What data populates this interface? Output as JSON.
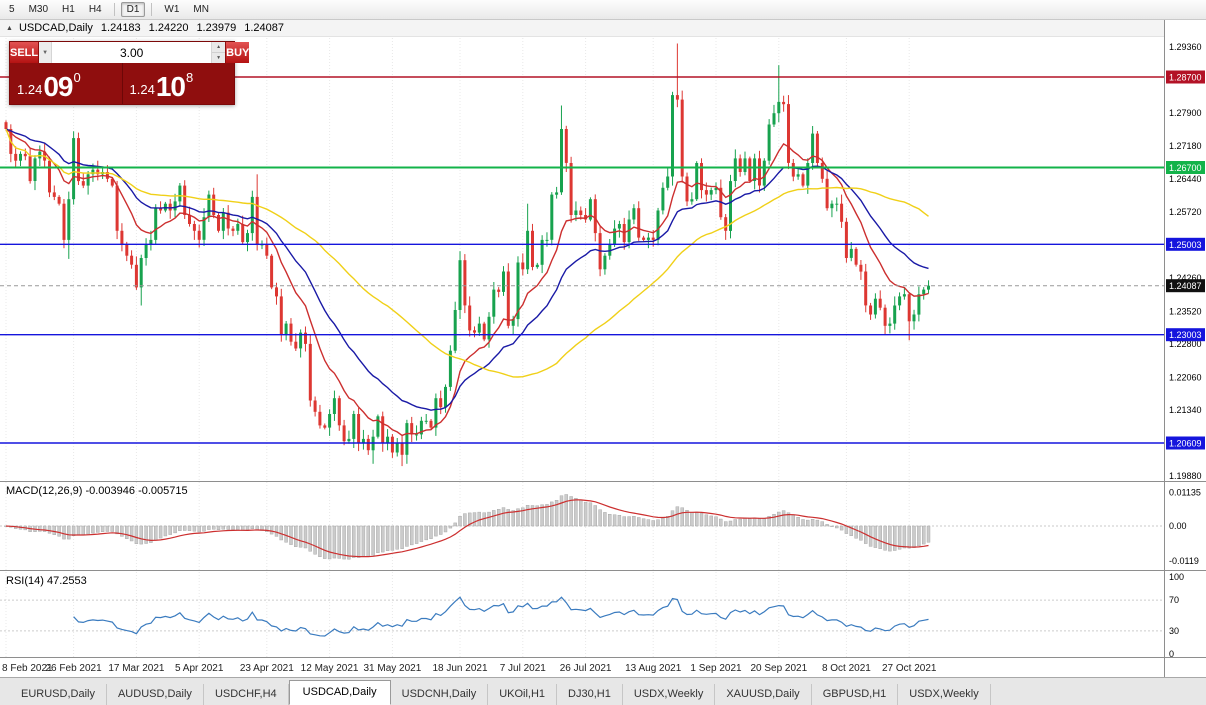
{
  "toolbar": {
    "timeframes": [
      "5",
      "M30",
      "H1",
      "H4",
      "D1",
      "W1",
      "MN"
    ],
    "active": "D1",
    "separators_after": [
      "H4",
      "D1"
    ]
  },
  "quote_bar": {
    "collapse_icon": "▲",
    "symbol": "USDCAD,Daily",
    "open": "1.24183",
    "high": "1.24220",
    "low": "1.23979",
    "close": "1.24087"
  },
  "one_click": {
    "sell_label": "SELL",
    "buy_label": "BUY",
    "volume": "3.00",
    "dropdown_icon": "▼",
    "spinner_up_icon": "▲",
    "spinner_down_icon": "▼",
    "sell_price": {
      "big_figure": "1.24",
      "pips": "09",
      "fraction": "0"
    },
    "buy_price": {
      "big_figure": "1.24",
      "pips": "10",
      "fraction": "8"
    }
  },
  "chart": {
    "price_ticks": [
      "1.29360",
      "1.27900",
      "1.27180",
      "1.26440",
      "1.25720",
      "1.25000",
      "1.24260",
      "1.23520",
      "1.22800",
      "1.22060",
      "1.21340",
      "1.19880"
    ],
    "levels": [
      {
        "price": 1.287,
        "label": "1.28700",
        "color": "#b31226",
        "width": 1.4
      },
      {
        "price": 1.267,
        "label": "1.26700",
        "color": "#13b34a",
        "width": 2
      },
      {
        "price": 1.25003,
        "label": "1.25003",
        "color": "#1515dd",
        "width": 1.4
      },
      {
        "price": 1.23003,
        "label": "1.23003",
        "color": "#1515dd",
        "width": 1.4
      },
      {
        "price": 1.20609,
        "label": "1.20609",
        "color": "#1515dd",
        "width": 1.4
      }
    ],
    "current_price": {
      "value": 1.24087,
      "label": "1.24087",
      "badge_color": "#111111"
    },
    "date_labels": [
      [
        0,
        "8 Feb 2021"
      ],
      [
        14,
        "26 Feb 2021"
      ],
      [
        27,
        "17 Mar 2021"
      ],
      [
        40,
        "5 Apr 2021"
      ],
      [
        54,
        "23 Apr 2021"
      ],
      [
        67,
        "12 May 2021"
      ],
      [
        80,
        "31 May 2021"
      ],
      [
        94,
        "18 Jun 2021"
      ],
      [
        107,
        "7 Jul 2021"
      ],
      [
        120,
        "26 Jul 2021"
      ],
      [
        134,
        "13 Aug 2021"
      ],
      [
        147,
        "1 Sep 2021"
      ],
      [
        160,
        "20 Sep 2021"
      ],
      [
        174,
        "8 Oct 2021"
      ],
      [
        187,
        "27 Oct 2021"
      ]
    ]
  },
  "macd": {
    "title": "MACD(12,26,9)",
    "value_main": "-0.003946",
    "value_signal": "-0.005715",
    "fast": 12,
    "slow": 26,
    "signal": 9,
    "ticks": [
      {
        "label": "0.01135",
        "v": 0.01135
      },
      {
        "label": "0.00",
        "v": 0
      },
      {
        "label": "-0.0119",
        "v": -0.0119
      }
    ]
  },
  "rsi": {
    "title": "RSI(14)",
    "value": "47.2553",
    "period": 14,
    "levels": [
      70,
      30
    ],
    "ticks": [
      {
        "label": "100",
        "v": 100
      },
      {
        "label": "70",
        "v": 70
      },
      {
        "label": "30",
        "v": 30
      },
      {
        "label": "0",
        "v": 0
      }
    ]
  },
  "tabs": [
    {
      "label": "EURUSD,Daily",
      "active": false
    },
    {
      "label": "AUDUSD,Daily",
      "active": false
    },
    {
      "label": "USDCHF,H4",
      "active": false
    },
    {
      "label": "USDCAD,Daily",
      "active": true
    },
    {
      "label": "USDCNH,Daily",
      "active": false
    },
    {
      "label": "UKOil,H1",
      "active": false
    },
    {
      "label": "DJ30,H1",
      "active": false
    },
    {
      "label": "USDX,Weekly",
      "active": false
    },
    {
      "label": "XAUUSD,Daily",
      "active": false
    },
    {
      "label": "GBPUSD,H1",
      "active": false
    },
    {
      "label": "USDX,Weekly",
      "active": false
    }
  ],
  "colors": {
    "up": "#17a24e",
    "down": "#dd3732",
    "ma_fast": "#cc2f2f",
    "ma_mid": "#1a1aa6",
    "ma_slow": "#f0d018",
    "macd_hist": "#cbcbcb",
    "macd_hist_border": "#9e9e9e",
    "macd_signal": "#cc2f2f",
    "rsi_line": "#3a7bbf",
    "grid": "#e8e8e8",
    "pane_border": "#8e8e8e",
    "axis_text": "#000000"
  },
  "chart_data": {
    "type": "candlestick",
    "symbol": "USDCAD",
    "timeframe": "Daily",
    "first_open": 1.277,
    "price_range": [
      1.1977,
      1.2996
    ],
    "closes": [
      1.2755,
      1.27,
      1.2685,
      1.27,
      1.2695,
      1.264,
      1.269,
      1.2705,
      1.2685,
      1.2615,
      1.2605,
      1.259,
      1.251,
      1.26,
      1.2735,
      1.264,
      1.263,
      1.2655,
      1.2665,
      1.2655,
      1.266,
      1.2645,
      1.263,
      1.253,
      1.25,
      1.2475,
      1.2455,
      1.2405,
      1.247,
      1.25,
      1.251,
      1.258,
      1.2575,
      1.259,
      1.2575,
      1.2595,
      1.263,
      1.2565,
      1.2545,
      1.253,
      1.251,
      1.256,
      1.261,
      1.2565,
      1.253,
      1.257,
      1.2535,
      1.253,
      1.2545,
      1.2505,
      1.2525,
      1.2605,
      1.25,
      1.25,
      1.2475,
      1.2405,
      1.2385,
      1.23,
      1.2325,
      1.2285,
      1.227,
      1.2305,
      1.228,
      1.2155,
      1.213,
      1.21,
      1.2095,
      1.2125,
      1.216,
      1.21,
      1.2065,
      1.207,
      1.2125,
      1.206,
      1.207,
      1.2045,
      1.2075,
      1.212,
      1.206,
      1.2075,
      1.204,
      1.206,
      1.2035,
      1.2105,
      1.208,
      1.208,
      1.211,
      1.211,
      1.2095,
      1.216,
      1.214,
      1.2185,
      1.2265,
      1.2355,
      1.2465,
      1.2365,
      1.231,
      1.2305,
      1.2325,
      1.229,
      1.234,
      1.24,
      1.2395,
      1.244,
      1.232,
      1.2335,
      1.246,
      1.2445,
      1.253,
      1.245,
      1.2455,
      1.251,
      1.251,
      1.261,
      1.2615,
      1.2755,
      1.268,
      1.2565,
      1.2575,
      1.2565,
      1.2555,
      1.26,
      1.2525,
      1.2445,
      1.2475,
      1.25,
      1.2535,
      1.2545,
      1.2505,
      1.2555,
      1.258,
      1.2515,
      1.251,
      1.2515,
      1.251,
      1.2575,
      1.2625,
      1.265,
      1.283,
      1.282,
      1.265,
      1.2595,
      1.26,
      1.268,
      1.262,
      1.261,
      1.262,
      1.2625,
      1.256,
      1.253,
      1.264,
      1.269,
      1.266,
      1.269,
      1.264,
      1.269,
      1.263,
      1.2685,
      1.2765,
      1.279,
      1.2815,
      1.281,
      1.268,
      1.265,
      1.2655,
      1.263,
      1.268,
      1.2745,
      1.268,
      1.2645,
      1.258,
      1.259,
      1.259,
      1.255,
      1.247,
      1.249,
      1.2455,
      1.244,
      1.2365,
      1.2345,
      1.238,
      1.236,
      1.232,
      1.2325,
      1.2365,
      1.2385,
      1.239,
      1.233,
      1.2345,
      1.239,
      1.24,
      1.24087
    ],
    "extremes": [
      {
        "i": 13,
        "l": 1.2468
      },
      {
        "i": 14,
        "h": 1.275
      },
      {
        "i": 28,
        "l": 1.2365
      },
      {
        "i": 52,
        "h": 1.2655
      },
      {
        "i": 76,
        "l": 1.2015
      },
      {
        "i": 82,
        "l": 1.201
      },
      {
        "i": 94,
        "h": 1.2485
      },
      {
        "i": 108,
        "h": 1.259
      },
      {
        "i": 115,
        "h": 1.2807
      },
      {
        "i": 139,
        "h": 1.2944
      },
      {
        "i": 160,
        "h": 1.2896
      },
      {
        "i": 187,
        "l": 1.2288
      }
    ],
    "moving_averages": [
      {
        "period": 12,
        "method": "ema",
        "color_key": "ma_fast"
      },
      {
        "period": 26,
        "method": "ema",
        "color_key": "ma_mid"
      },
      {
        "period": 52,
        "method": "sma",
        "color_key": "ma_slow"
      }
    ]
  }
}
